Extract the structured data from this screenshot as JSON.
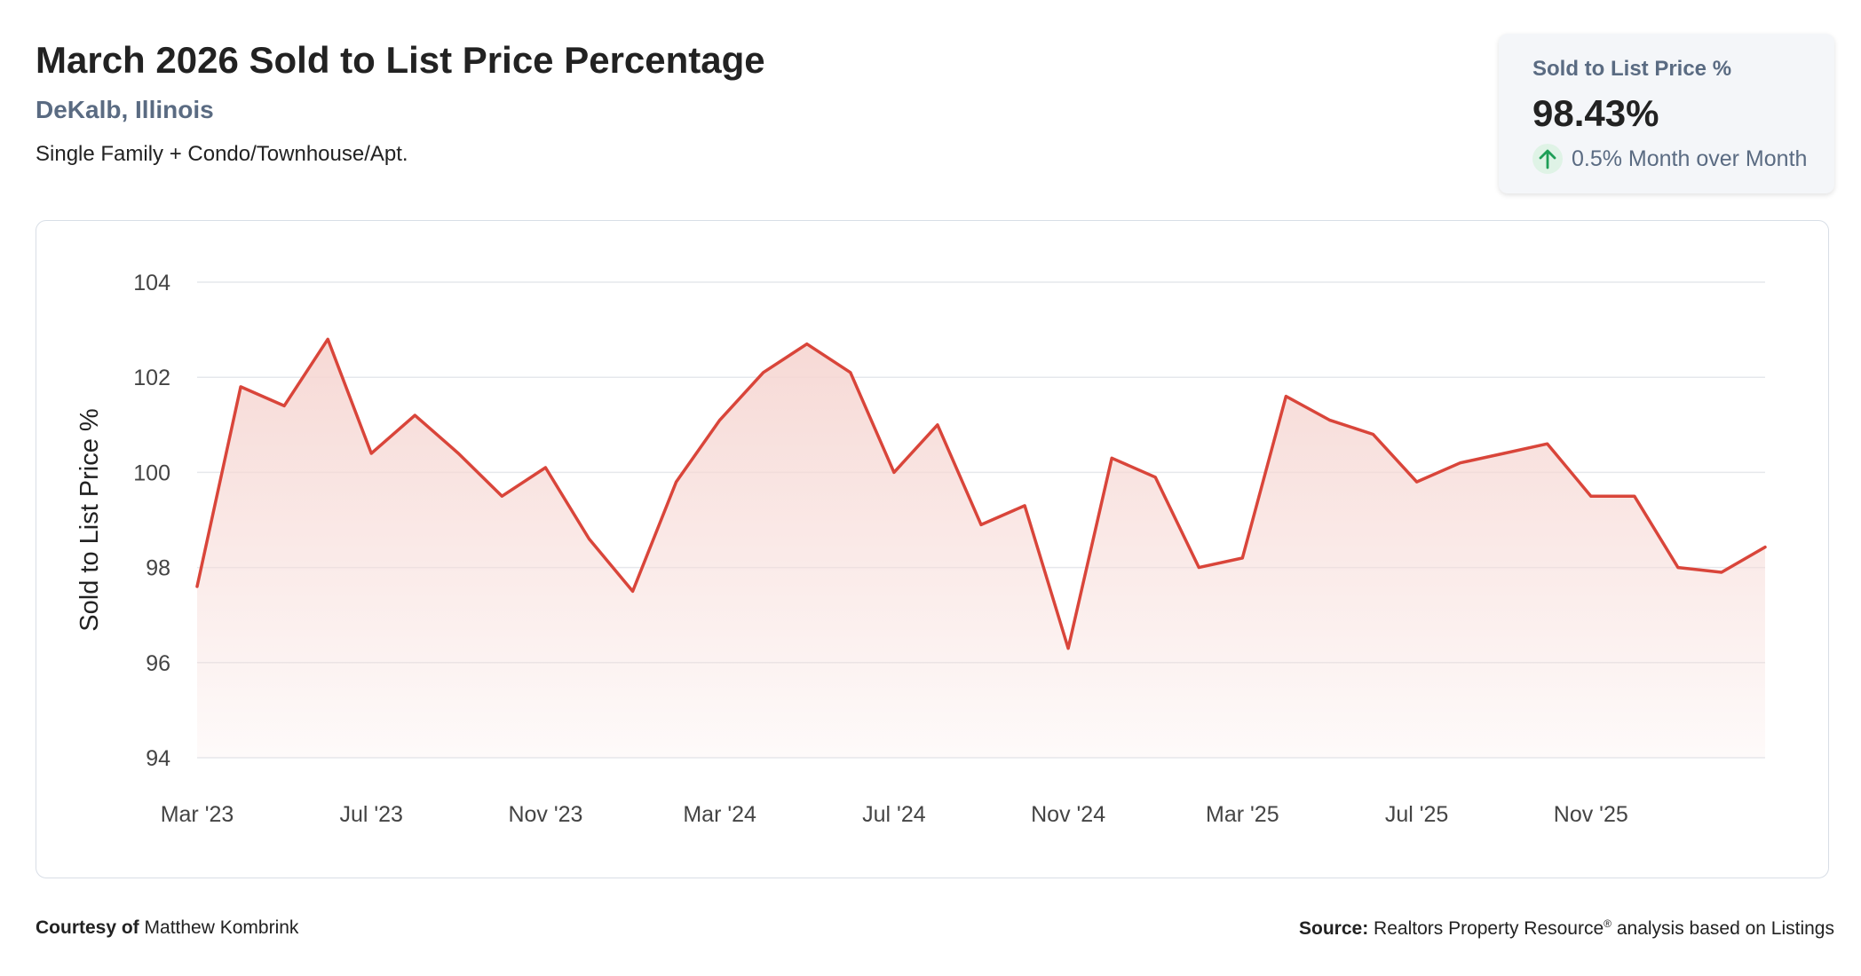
{
  "header": {
    "title": "March 2026 Sold to List Price Percentage",
    "location": "DeKalb, Illinois",
    "property_types": "Single Family + Condo/Townhouse/Apt."
  },
  "stat_card": {
    "label": "Sold to List Price %",
    "value": "98.43%",
    "change": "0.5% Month over Month",
    "change_direction": "up",
    "arrow_icon": "arrow-up-icon",
    "positive_color": "#1e9e57"
  },
  "footer": {
    "courtesy_prefix": "Courtesy of",
    "courtesy_name": "Matthew Kombrink",
    "source_prefix": "Source:",
    "source_text": "Realtors Property Resource",
    "source_mark": "®",
    "source_suffix": " analysis based on Listings"
  },
  "colors": {
    "line": "#d9453a",
    "fill": "#f6d7d3",
    "grid": "#e6e8ec",
    "axis_text": "#444444"
  },
  "chart_data": {
    "type": "area",
    "title": "",
    "xlabel": "",
    "ylabel": "Sold to List Price %",
    "ylim": [
      94,
      104
    ],
    "yticks": [
      94,
      96,
      98,
      100,
      102,
      104
    ],
    "grid": true,
    "x": [
      "Mar '23",
      "Apr '23",
      "May '23",
      "Jun '23",
      "Jul '23",
      "Aug '23",
      "Sep '23",
      "Oct '23",
      "Nov '23",
      "Dec '23",
      "Jan '24",
      "Feb '24",
      "Mar '24",
      "Apr '24",
      "May '24",
      "Jun '24",
      "Jul '24",
      "Aug '24",
      "Sep '24",
      "Oct '24",
      "Nov '24",
      "Dec '24",
      "Jan '25",
      "Feb '25",
      "Mar '25",
      "Apr '25",
      "May '25",
      "Jun '25",
      "Jul '25",
      "Aug '25",
      "Sep '25",
      "Oct '25",
      "Nov '25",
      "Dec '25",
      "Jan '26",
      "Feb '26",
      "Mar '26"
    ],
    "xtick_labels": [
      "Mar '23",
      "Jul '23",
      "Nov '23",
      "Mar '24",
      "Jul '24",
      "Nov '24",
      "Mar '25",
      "Jul '25",
      "Nov '25"
    ],
    "series": [
      {
        "values": [
          97.6,
          101.8,
          101.4,
          102.8,
          100.4,
          101.2,
          100.4,
          99.5,
          100.1,
          98.6,
          97.5,
          99.8,
          101.1,
          102.1,
          102.7,
          102.1,
          100.0,
          101.0,
          98.9,
          99.3,
          96.3,
          100.3,
          99.9,
          98.0,
          98.2,
          101.6,
          101.1,
          100.8,
          99.8,
          100.2,
          100.4,
          100.6,
          99.5,
          99.5,
          98.0,
          97.9,
          98.43
        ]
      }
    ]
  }
}
